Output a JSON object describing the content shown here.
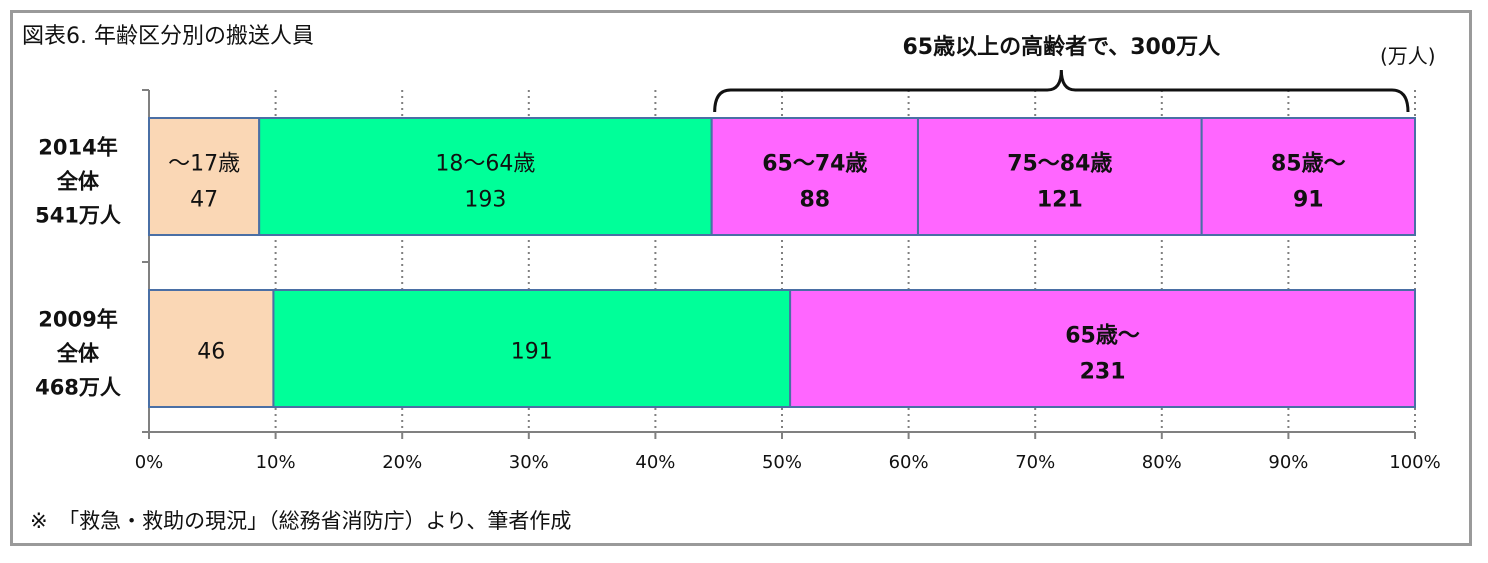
{
  "title": "図表6.  年齢区分別の搬送人員",
  "unit_label": "(万人)",
  "footnote": "※　「救急・救助の現況」（総務省消防庁）より、筆者作成",
  "colors": {
    "under18": "#FAD7B5",
    "age18_64": "#00FF99",
    "age65plus": "#FF66FF",
    "border": "#4A6FA5",
    "grid": "#808080"
  },
  "chart_data": {
    "type": "bar",
    "orientation": "horizontal",
    "stacked": "percent",
    "xlim": [
      0,
      100
    ],
    "x_ticks": [
      "0%",
      "10%",
      "20%",
      "30%",
      "40%",
      "50%",
      "60%",
      "70%",
      "80%",
      "90%",
      "100%"
    ],
    "grid": "vertical-dotted",
    "rows": [
      {
        "label_lines": [
          "2014年",
          "全体",
          "541万人"
        ],
        "segments": [
          {
            "label": "～17歳",
            "value": 47,
            "color": "under18",
            "bold": false
          },
          {
            "label": "18～64歳",
            "value": 193,
            "color": "age18_64",
            "bold": false
          },
          {
            "label": "65～74歳",
            "value": 88,
            "color": "age65plus",
            "bold": true
          },
          {
            "label": "75～84歳",
            "value": 121,
            "color": "age65plus",
            "bold": true
          },
          {
            "label": "85歳～",
            "value": 91,
            "color": "age65plus",
            "bold": true
          }
        ]
      },
      {
        "label_lines": [
          "2009年",
          "全体",
          "468万人"
        ],
        "segments": [
          {
            "label": "",
            "value": 46,
            "color": "under18",
            "bold": false
          },
          {
            "label": "",
            "value": 191,
            "color": "age18_64",
            "bold": false
          },
          {
            "label": "65歳～",
            "value": 231,
            "color": "age65plus",
            "bold": true
          }
        ]
      }
    ],
    "annotation": {
      "text": "65歳以上の高齢者で、300万人",
      "row": 0,
      "from_segment": 2,
      "to_segment": 4
    }
  }
}
